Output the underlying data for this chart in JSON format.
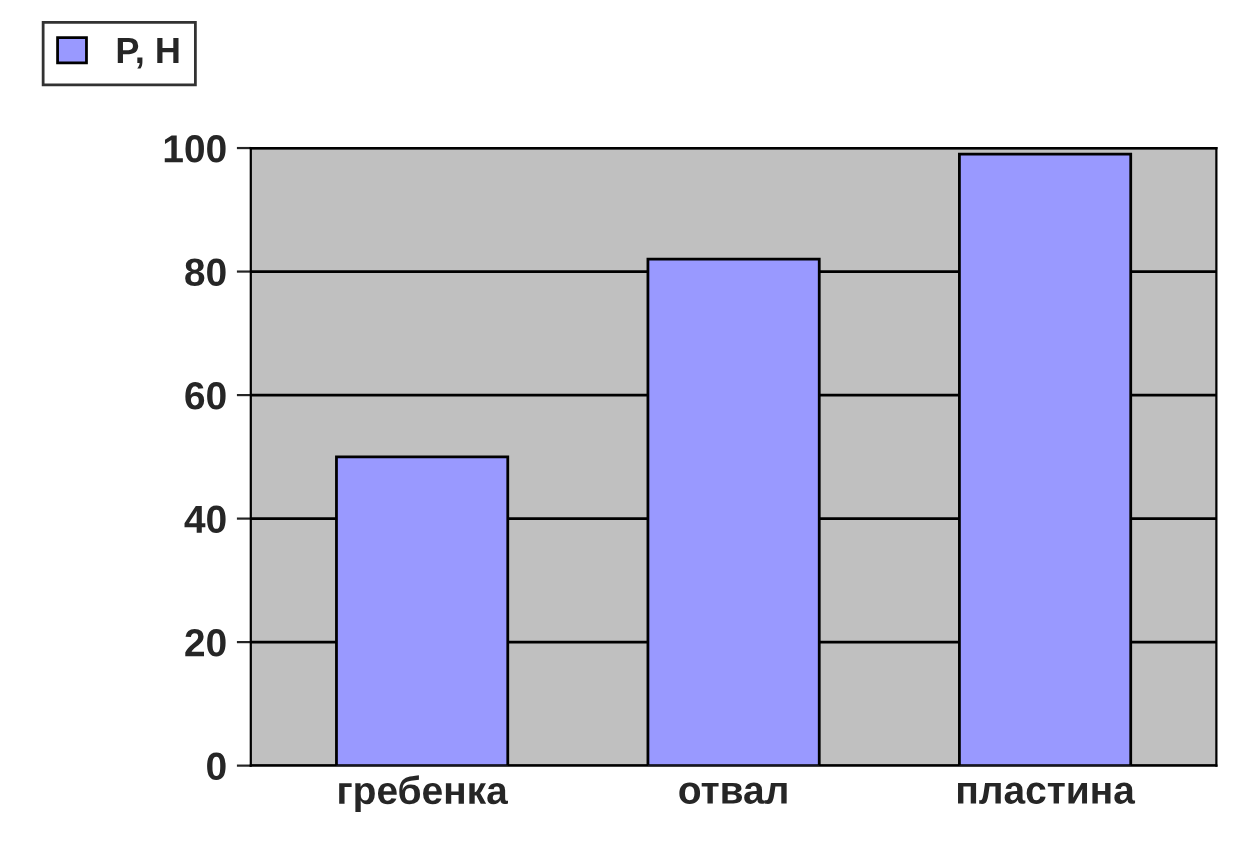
{
  "chart_data": {
    "type": "bar",
    "categories": [
      "гребенка",
      "отвал",
      "пластина"
    ],
    "series": [
      {
        "name": "P, H",
        "color": "#9999ff",
        "values": [
          50,
          82,
          99
        ]
      }
    ],
    "ylim": [
      0,
      100
    ],
    "yticks": [
      0,
      20,
      40,
      60,
      80,
      100
    ],
    "grid": "y",
    "legend": "top left"
  }
}
